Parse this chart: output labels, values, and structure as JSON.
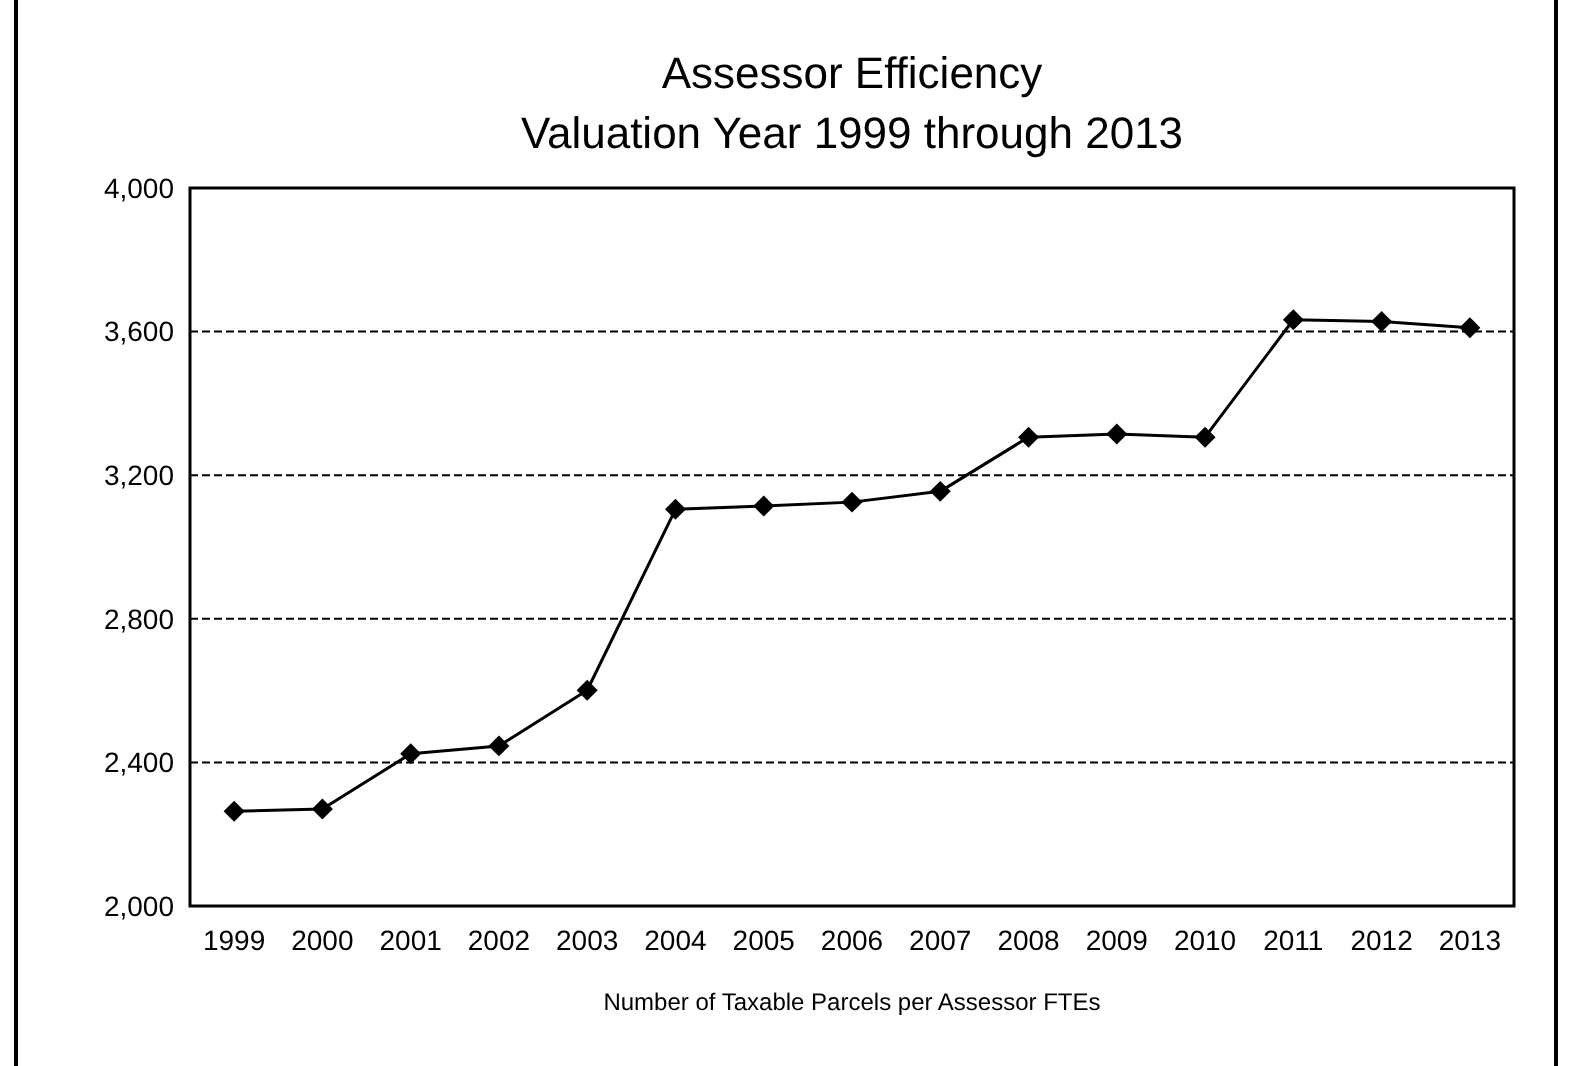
{
  "chart_data": {
    "type": "line",
    "title": "Assessor Efficiency",
    "subtitle": "Valuation Year 1999 through 2013",
    "xlabel": "Number of Taxable Parcels per Assessor FTEs",
    "categories": [
      "1999",
      "2000",
      "2001",
      "2002",
      "2003",
      "2004",
      "2005",
      "2006",
      "2007",
      "2008",
      "2009",
      "2010",
      "2011",
      "2012",
      "2013"
    ],
    "series": [
      {
        "color": "#000000",
        "values": [
          2264,
          2270,
          2424,
          2446,
          2601,
          3105,
          3114,
          3125,
          3155,
          3306,
          3315,
          3306,
          3633,
          3628,
          3611
        ]
      }
    ],
    "ylim": [
      2000,
      4000
    ],
    "yticks": [
      {
        "value": 2000,
        "label": "2,000"
      },
      {
        "value": 2400,
        "label": "2,400"
      },
      {
        "value": 2800,
        "label": "2,800"
      },
      {
        "value": 3200,
        "label": "3,200"
      },
      {
        "value": 3600,
        "label": "3,600"
      },
      {
        "value": 4000,
        "label": "4,000"
      }
    ],
    "grid": "y",
    "marker": "diamond"
  }
}
